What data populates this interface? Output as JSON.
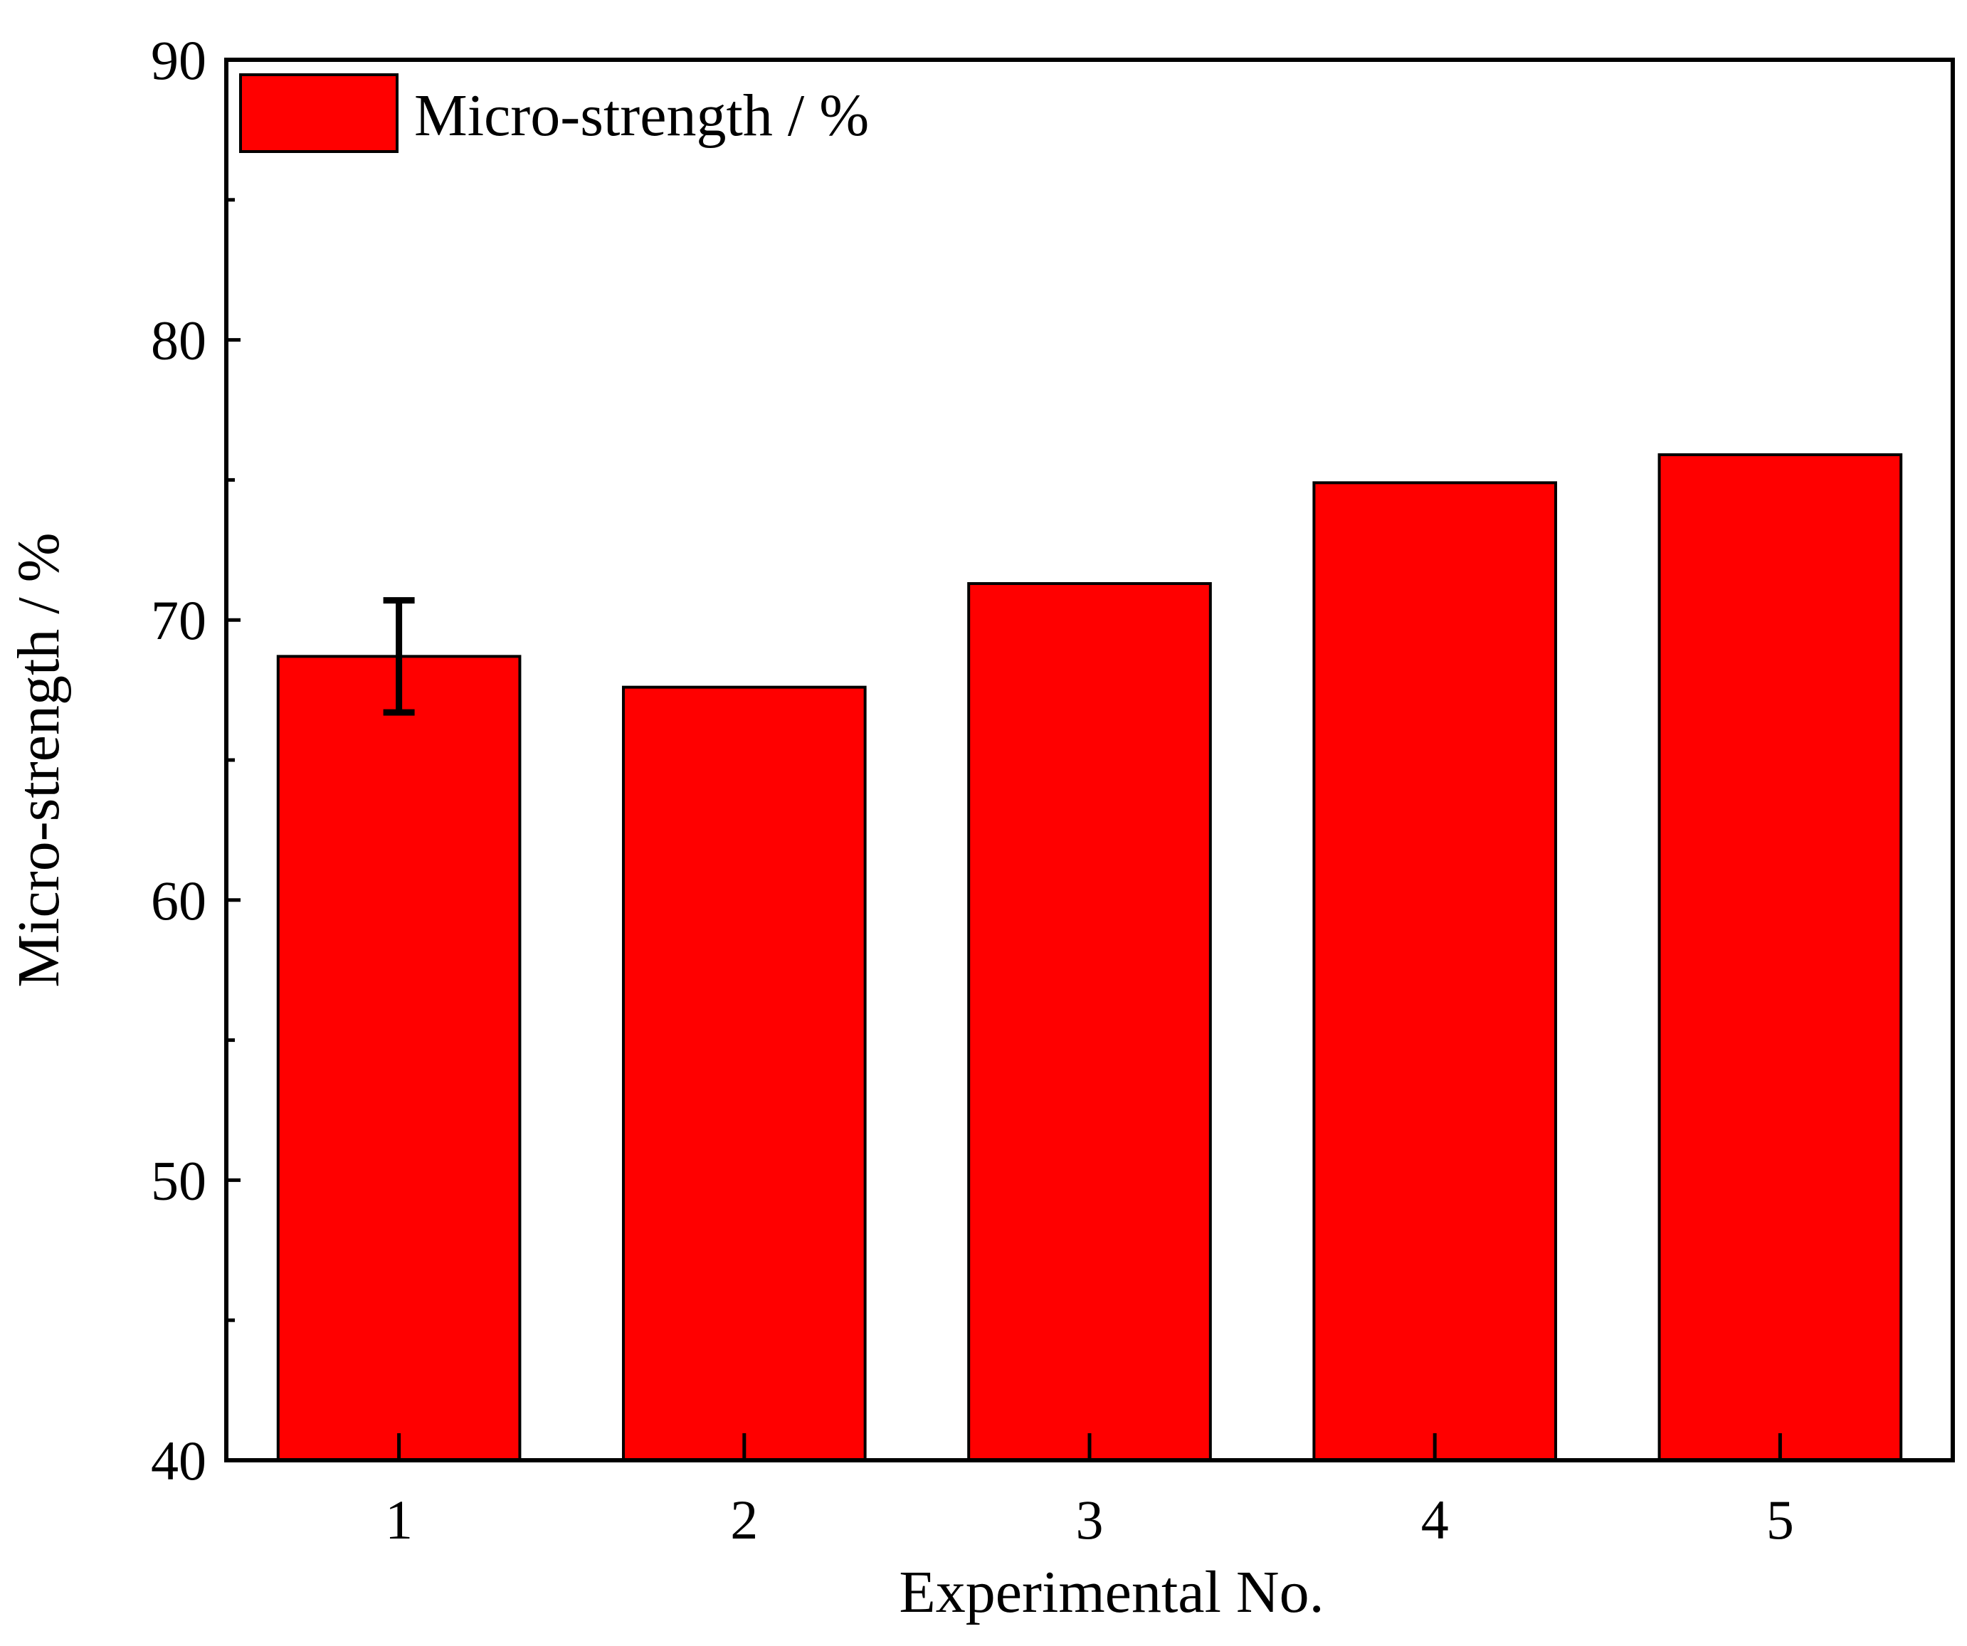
{
  "chart_data": {
    "type": "bar",
    "categories": [
      "1",
      "2",
      "3",
      "4",
      "5"
    ],
    "series": [
      {
        "name": "Micro-strength / %",
        "values": [
          68.7,
          67.6,
          71.3,
          74.9,
          75.9
        ]
      }
    ],
    "error_bars": [
      {
        "category": "1",
        "plus": 2.0,
        "minus": 2.0
      }
    ],
    "xlabel": "Experimental No.",
    "ylabel": "Micro-strength / %",
    "ylim": [
      40,
      90
    ],
    "yticks": [
      40,
      50,
      60,
      70,
      80,
      90
    ],
    "yticks_labels": [
      "40",
      "50",
      "60",
      "70",
      "80",
      "90"
    ],
    "y_minor_ticks": [
      45,
      55,
      65,
      75,
      85
    ],
    "grid": false,
    "legend": "top-left",
    "colors": {
      "bar": "#ff0000",
      "edge": "#000000"
    }
  }
}
